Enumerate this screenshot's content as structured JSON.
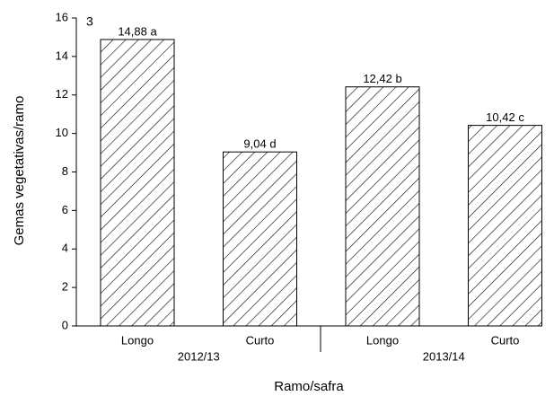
{
  "chart_data": {
    "type": "bar",
    "panel_label": "3",
    "xlabel": "Ramo/safra",
    "ylabel": "Gemas vegetativas/ramo",
    "categories": [
      "Longo",
      "Curto",
      "Longo",
      "Curto"
    ],
    "groups": [
      "2012/13",
      "2013/14"
    ],
    "values": [
      14.88,
      9.04,
      12.42,
      10.42
    ],
    "value_labels": [
      "14,88 a",
      "9,04 d",
      "12,42 b",
      "10,42 c"
    ],
    "color": "#000000",
    "ylim": [
      0,
      16
    ],
    "yticks": [
      0,
      2,
      4,
      6,
      8,
      10,
      12,
      14,
      16
    ]
  }
}
